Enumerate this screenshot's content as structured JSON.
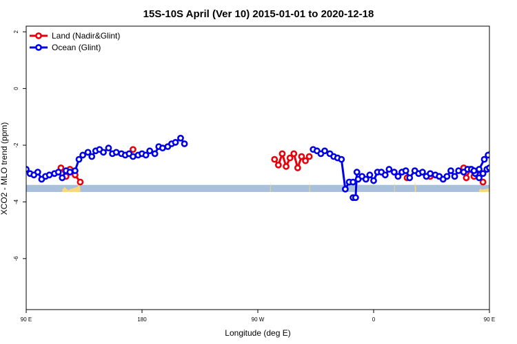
{
  "chart_data": {
    "type": "line",
    "title": "15S-10S April (Ver 10)   2015-01-01 to 2020-12-18",
    "xlabel": "Longitude (deg E)",
    "ylabel": "XCO2 - MLO trend (ppm)",
    "xlim": [
      90,
      450
    ],
    "ylim": [
      -7.8,
      2.2
    ],
    "x_ticks": [
      {
        "value": 90,
        "label": "90 E"
      },
      {
        "value": 180,
        "label": "180"
      },
      {
        "value": 270,
        "label": "90 W"
      },
      {
        "value": 360,
        "label": "0"
      },
      {
        "value": 450,
        "label": "90 E"
      },
      {
        "value": 540,
        "label": "180"
      }
    ],
    "y_ticks": [
      {
        "value": 2,
        "label": "2"
      },
      {
        "value": 0,
        "label": "0"
      },
      {
        "value": -2,
        "label": "-2"
      },
      {
        "value": -4,
        "label": "-4"
      },
      {
        "value": -6,
        "label": "-6"
      }
    ],
    "grid": false,
    "legend_position": "top-left",
    "land_band": {
      "ymin": -3.65,
      "ymax": -3.4,
      "color": "#a8c0dc"
    },
    "land_mask_color": "#f8d878",
    "land_mask": [
      [
        118,
        0.2
      ],
      [
        120,
        0.45
      ],
      [
        121,
        0.3
      ],
      [
        123,
        0.15
      ],
      [
        124,
        0.25
      ],
      [
        130,
        0.45
      ],
      [
        131,
        0.8
      ],
      [
        132,
        0.35
      ],
      [
        279.5,
        0.35
      ],
      [
        280,
        1.0
      ],
      [
        310,
        1.0
      ],
      [
        310.5,
        0.35
      ],
      [
        376,
        0.35
      ],
      [
        376.5,
        1.0
      ],
      [
        392,
        1.0
      ],
      [
        393,
        0.35
      ],
      [
        442,
        0.15
      ],
      [
        443,
        0.35
      ],
      [
        444,
        0.2
      ],
      [
        446,
        0.25
      ],
      [
        451,
        0.35
      ],
      [
        452,
        0.85
      ],
      [
        453,
        0.3
      ]
    ],
    "series": [
      {
        "name": "Land (Nadir&Glint)",
        "color": "#e8000b",
        "lines": [
          [
            [
              117,
              -2.8
            ],
            [
              121,
              -3.1
            ],
            [
              124,
              -2.85
            ],
            [
              128,
              -3.05
            ],
            [
              132,
              -3.3
            ]
          ],
          [
            [
              173,
              -2.15
            ]
          ],
          [
            [
              283,
              -2.5
            ],
            [
              286,
              -2.7
            ],
            [
              289,
              -2.3
            ],
            [
              292,
              -2.75
            ],
            [
              295,
              -2.45
            ],
            [
              298,
              -2.3
            ],
            [
              301,
              -2.8
            ],
            [
              304,
              -2.4
            ],
            [
              307,
              -2.55
            ],
            [
              310,
              -2.4
            ]
          ],
          [
            [
              386,
              -3.15
            ]
          ],
          [
            [
              404,
              -3.1
            ]
          ],
          [
            [
              430,
              -2.8
            ],
            [
              432,
              -3.15
            ],
            [
              435,
              -2.85
            ],
            [
              438,
              -3.1
            ],
            [
              441,
              -2.9
            ]
          ],
          [
            [
              445,
              -3.3
            ]
          ]
        ]
      },
      {
        "name": "Ocean (Glint)",
        "color": "#0000e6",
        "lines": [
          [
            [
              90,
              -2.85
            ],
            [
              93,
              -3.0
            ],
            [
              96,
              -3.05
            ],
            [
              99,
              -2.95
            ],
            [
              102,
              -3.2
            ],
            [
              105,
              -3.1
            ],
            [
              108,
              -3.05
            ],
            [
              112,
              -3.0
            ],
            [
              115,
              -2.95
            ],
            [
              118,
              -3.15
            ],
            [
              121,
              -2.9
            ],
            [
              124,
              -2.95
            ],
            [
              128,
              -2.9
            ],
            [
              131,
              -2.5
            ],
            [
              134,
              -2.35
            ],
            [
              138,
              -2.25
            ],
            [
              141,
              -2.4
            ],
            [
              144,
              -2.2
            ],
            [
              147,
              -2.15
            ],
            [
              150,
              -2.25
            ],
            [
              154,
              -2.1
            ],
            [
              157,
              -2.3
            ],
            [
              160,
              -2.25
            ],
            [
              164,
              -2.3
            ],
            [
              167,
              -2.35
            ],
            [
              170,
              -2.3
            ],
            [
              173,
              -2.4
            ],
            [
              177,
              -2.35
            ],
            [
              180,
              -2.3
            ],
            [
              183,
              -2.35
            ],
            [
              186,
              -2.2
            ],
            [
              190,
              -2.3
            ],
            [
              193,
              -2.05
            ],
            [
              196,
              -2.1
            ],
            [
              200,
              -2.05
            ],
            [
              203,
              -1.95
            ],
            [
              206,
              -1.9
            ],
            [
              210,
              -1.75
            ],
            [
              213,
              -1.95
            ]
          ],
          [
            [
              313,
              -2.15
            ],
            [
              316,
              -2.2
            ],
            [
              319,
              -2.3
            ],
            [
              322,
              -2.2
            ],
            [
              326,
              -2.3
            ],
            [
              329,
              -2.4
            ],
            [
              332,
              -2.45
            ],
            [
              335,
              -2.5
            ],
            [
              338,
              -3.55
            ],
            [
              341,
              -3.3
            ],
            [
              344,
              -3.3
            ],
            [
              348,
              -3.2
            ],
            [
              351,
              -3.1
            ],
            [
              354,
              -3.2
            ],
            [
              357,
              -3.05
            ],
            [
              360,
              -3.25
            ],
            [
              363,
              -2.95
            ],
            [
              366,
              -2.95
            ],
            [
              369,
              -3.05
            ],
            [
              372,
              -2.85
            ],
            [
              376,
              -2.95
            ],
            [
              379,
              -3.1
            ],
            [
              382,
              -2.95
            ],
            [
              385,
              -2.9
            ],
            [
              388,
              -3.15
            ],
            [
              392,
              -2.9
            ],
            [
              395,
              -3.0
            ],
            [
              398,
              -2.95
            ],
            [
              401,
              -3.1
            ],
            [
              404,
              -3.0
            ],
            [
              408,
              -3.05
            ],
            [
              411,
              -3.1
            ],
            [
              414,
              -3.2
            ],
            [
              417,
              -3.1
            ],
            [
              420,
              -2.9
            ],
            [
              423,
              -3.1
            ],
            [
              426,
              -2.9
            ],
            [
              430,
              -2.95
            ],
            [
              433,
              -2.85
            ],
            [
              436,
              -2.85
            ],
            [
              439,
              -3.0
            ],
            [
              442,
              -3.15
            ],
            [
              445,
              -3.0
            ],
            [
              448,
              -2.85
            ],
            [
              450,
              -2.8
            ]
          ],
          [
            [
              344,
              -3.85
            ],
            [
              346,
              -3.85
            ],
            [
              347,
              -2.95
            ]
          ],
          [
            [
              438,
              -2.9
            ],
            [
              442,
              -2.85
            ],
            [
              446,
              -2.5
            ],
            [
              449,
              -2.35
            ],
            [
              452,
              -2.25
            ],
            [
              455,
              -2.4
            ],
            [
              458,
              -2.15
            ]
          ]
        ]
      }
    ]
  }
}
